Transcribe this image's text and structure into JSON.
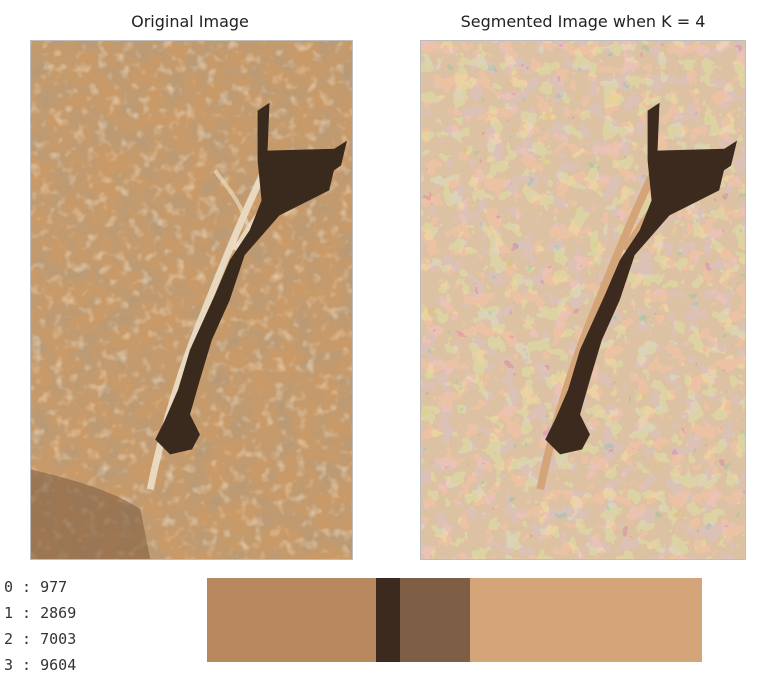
{
  "titles": {
    "original": "Original Image",
    "segmented": "Segmented Image when K = 4"
  },
  "images": {
    "original": {
      "description": "aerial terrain image, light brown with a dark river/lake channel running diagonally",
      "base_color": "#c99a68"
    },
    "segmented": {
      "description": "same terrain quantized into 4 colors",
      "base_color": "#c9986a"
    }
  },
  "cluster_counts": [
    {
      "label": "0",
      "value": "977"
    },
    {
      "label": "1",
      "value": "2869"
    },
    {
      "label": "2",
      "value": "7003"
    },
    {
      "label": "3",
      "value": "9604"
    }
  ],
  "color_bar": [
    {
      "color": "#b8895e",
      "value": 7003
    },
    {
      "color": "#3c2a1e",
      "value": 977
    },
    {
      "color": "#7e5f45",
      "value": 2869
    },
    {
      "color": "#d4a578",
      "value": 9604
    }
  ]
}
